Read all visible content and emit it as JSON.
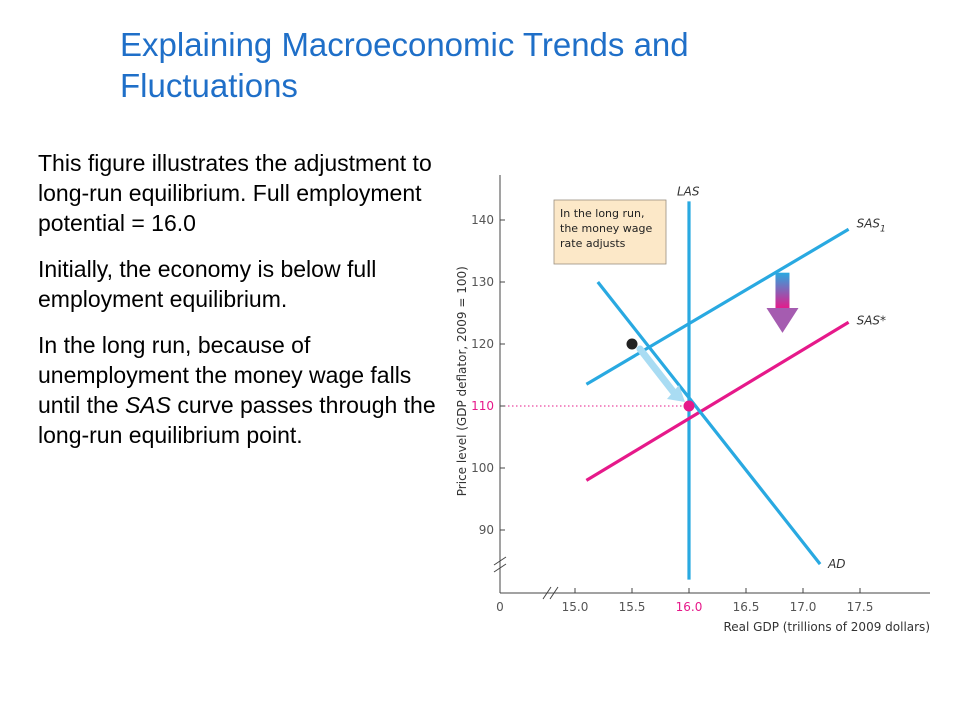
{
  "slide": {
    "title": "Explaining Macroeconomic Trends and Fluctuations",
    "paragraphs": [
      {
        "text": "This figure illustrates the adjustment to long-run equilibrium. Full employment potential = 16.0"
      },
      {
        "text": "Initially, the economy is below full employment equilibrium."
      },
      {
        "before": "In the long run, because of unemployment the money wage falls until the ",
        "emph": "SAS",
        "after": " curve passes through the long-run equilibrium point."
      }
    ]
  },
  "chart_data": {
    "type": "line",
    "xlabel": "Real GDP (trillions of 2009 dollars)",
    "ylabel": "Price level (GDP deflator, 2009 = 100)",
    "xlim": [
      14.5,
      18.0
    ],
    "ylim": [
      80,
      145
    ],
    "x_origin_label": "0",
    "x_ticks": [
      15.0,
      15.5,
      16.0,
      16.5,
      17.0,
      17.5
    ],
    "x_tick_labels": [
      "15.0",
      "15.5",
      "16.0",
      "16.5",
      "17.0",
      "17.5"
    ],
    "y_ticks": [
      90,
      100,
      110,
      120,
      130,
      140
    ],
    "y_tick_labels": [
      "90",
      "100",
      "110",
      "120",
      "130",
      "140"
    ],
    "highlight_x_tick": "16.0",
    "highlight_y_tick": "110",
    "series": [
      {
        "name": "LAS",
        "label": "LAS",
        "sub": "",
        "color": "#29a9e1",
        "points": [
          [
            16.0,
            82
          ],
          [
            16.0,
            143
          ]
        ]
      },
      {
        "name": "SAS1",
        "label": "SAS",
        "sub": "1",
        "color": "#29a9e1",
        "points": [
          [
            15.1,
            113.5
          ],
          [
            17.4,
            138.5
          ]
        ]
      },
      {
        "name": "SAS*",
        "label": "SAS*",
        "sub": "",
        "color": "#e6198a",
        "points": [
          [
            15.1,
            98
          ],
          [
            17.4,
            123.5
          ]
        ]
      },
      {
        "name": "AD",
        "label": "AD",
        "sub": "",
        "color": "#29a9e1",
        "points": [
          [
            15.2,
            130
          ],
          [
            17.15,
            84.5
          ]
        ]
      }
    ],
    "points": [
      {
        "name": "initial-equilibrium",
        "x": 15.5,
        "y": 120,
        "color": "#222222"
      },
      {
        "name": "long-run-equilibrium",
        "x": 16.0,
        "y": 110,
        "color": "#e6198a"
      }
    ],
    "annotation": {
      "lines": [
        "In the long run,",
        "the money wage",
        "rate adjusts"
      ]
    },
    "colors": {
      "accent_blue": "#29a9e1",
      "accent_pink": "#e6198a",
      "note_fill": "#fce8c8"
    }
  }
}
